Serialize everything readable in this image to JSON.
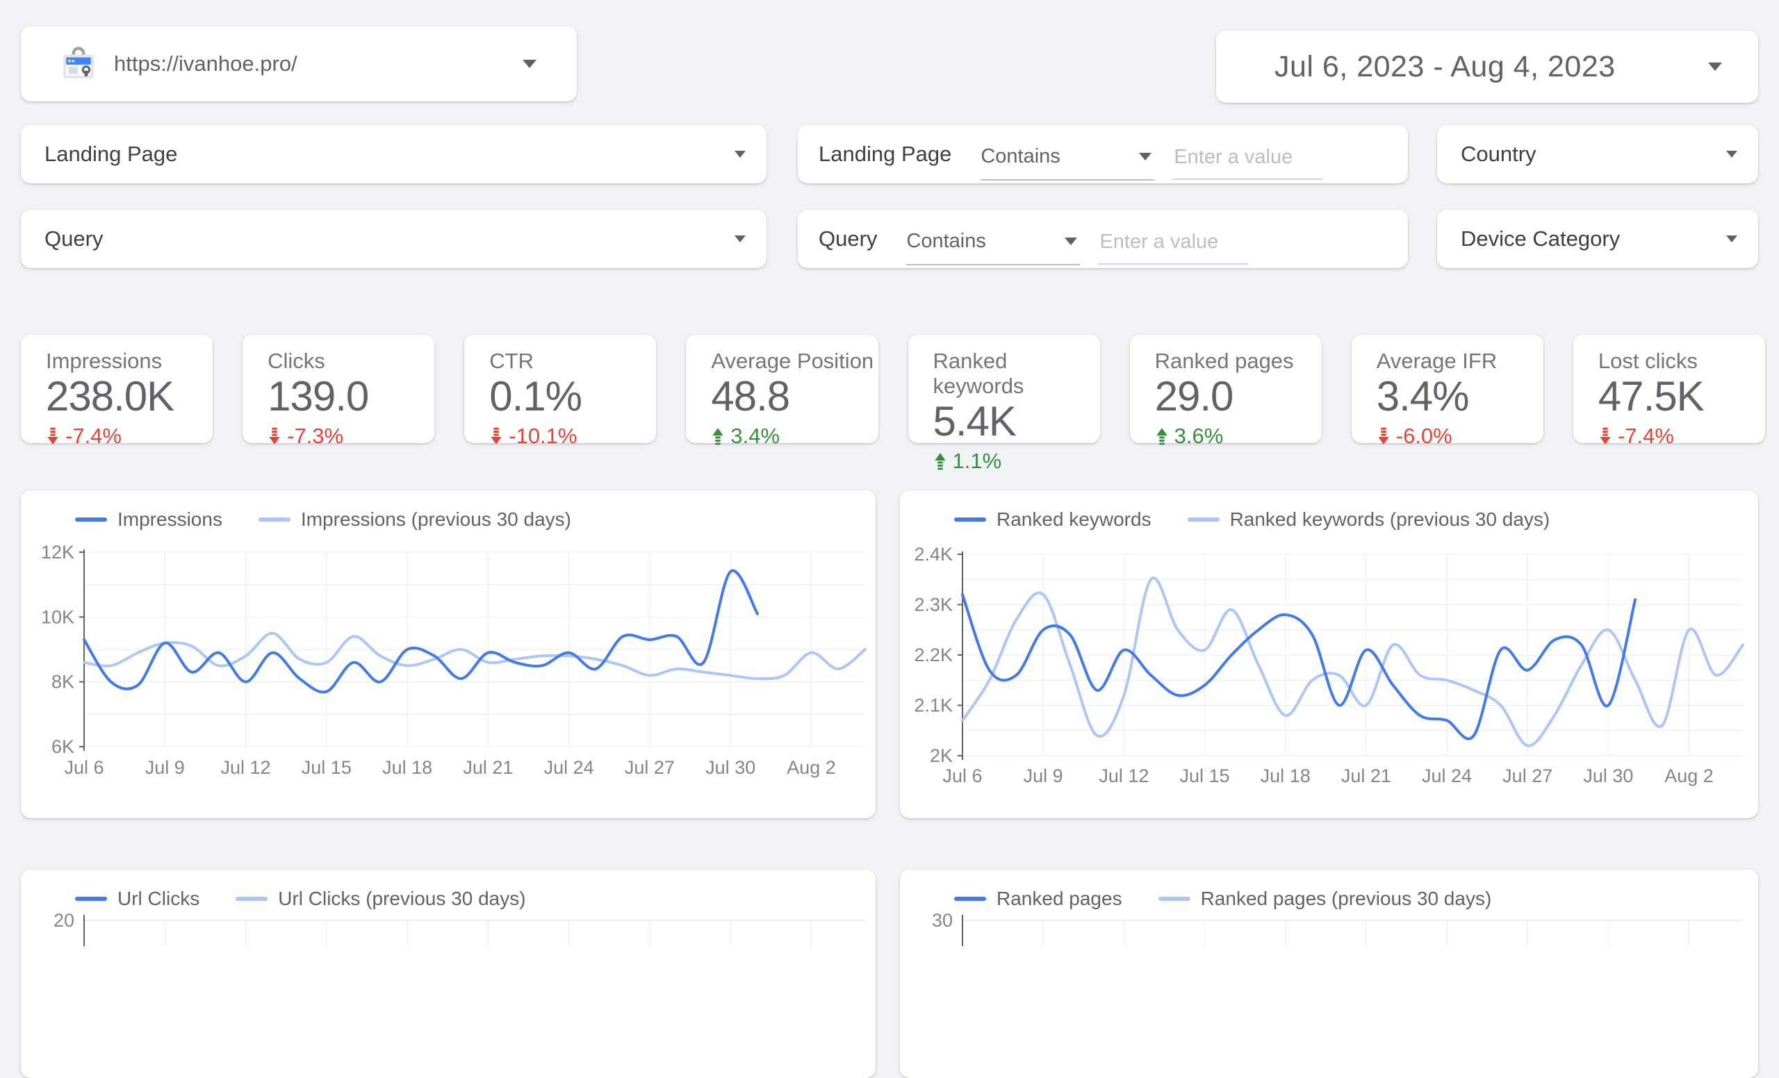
{
  "header": {
    "property_url": "https://ivanhoe.pro/",
    "date_range": "Jul 6, 2023 - Aug 4, 2023"
  },
  "filters": {
    "landing_page": {
      "label": "Landing Page"
    },
    "query": {
      "label": "Query"
    },
    "landing_page_condition": {
      "label": "Landing Page",
      "operator": "Contains",
      "placeholder": "Enter a value"
    },
    "query_condition": {
      "label": "Query",
      "operator": "Contains",
      "placeholder": "Enter a value"
    },
    "country": {
      "label": "Country"
    },
    "device_category": {
      "label": "Device Category"
    }
  },
  "scorecards": [
    {
      "label": "Impressions",
      "value": "238.0K",
      "delta": "-7.4%",
      "direction": "down"
    },
    {
      "label": "Clicks",
      "value": "139.0",
      "delta": "-7.3%",
      "direction": "down"
    },
    {
      "label": "CTR",
      "value": "0.1%",
      "delta": "-10.1%",
      "direction": "down"
    },
    {
      "label": "Average Position",
      "value": "48.8",
      "delta": "3.4%",
      "direction": "up"
    },
    {
      "label": "Ranked keywords",
      "value": "5.4K",
      "delta": "1.1%",
      "direction": "up"
    },
    {
      "label": "Ranked pages",
      "value": "29.0",
      "delta": "3.6%",
      "direction": "up"
    },
    {
      "label": "Average IFR",
      "value": "3.4%",
      "delta": "-6.0%",
      "direction": "down"
    },
    {
      "label": "Lost clicks",
      "value": "47.5K",
      "delta": "-7.4%",
      "direction": "down"
    }
  ],
  "chart_data": [
    {
      "type": "line",
      "title": "Impressions vs previous 30 days",
      "x_days": 30,
      "x_tick_idx": [
        0,
        3,
        6,
        9,
        12,
        15,
        18,
        21,
        24,
        27
      ],
      "x_tick_labels": [
        "Jul 6",
        "Jul 9",
        "Jul 12",
        "Jul 15",
        "Jul 18",
        "Jul 21",
        "Jul 24",
        "Jul 27",
        "Jul 30",
        "Aug 2"
      ],
      "ylim": [
        6000,
        12000
      ],
      "y_minor_step": 1000,
      "yticks": [
        {
          "value": 12000,
          "label": "12K"
        },
        {
          "value": 10000,
          "label": "10K"
        },
        {
          "value": 8000,
          "label": "8K"
        },
        {
          "value": 6000,
          "label": "6K"
        }
      ],
      "grid": true,
      "legend_position": "top",
      "series": [
        {
          "name": "Impressions",
          "values": [
            9300,
            8000,
            7900,
            9200,
            8300,
            8900,
            8000,
            8900,
            8100,
            7700,
            8600,
            8000,
            9000,
            8800,
            8100,
            8900,
            8600,
            8500,
            8900,
            8400,
            9400,
            9300,
            9400,
            8600,
            11400,
            10100
          ]
        },
        {
          "name": "Impressions (previous 30 days)",
          "values": [
            8600,
            8500,
            8900,
            9200,
            9100,
            8500,
            8800,
            9500,
            8700,
            8600,
            9400,
            8800,
            8500,
            8700,
            9000,
            8600,
            8700,
            8800,
            8800,
            8700,
            8500,
            8200,
            8400,
            8300,
            8200,
            8100,
            8200,
            8900,
            8400,
            9000
          ]
        }
      ]
    },
    {
      "type": "line",
      "title": "Ranked keywords vs previous 30 days",
      "x_days": 30,
      "x_tick_idx": [
        0,
        3,
        6,
        9,
        12,
        15,
        18,
        21,
        24,
        27
      ],
      "x_tick_labels": [
        "Jul 6",
        "Jul 9",
        "Jul 12",
        "Jul 15",
        "Jul 18",
        "Jul 21",
        "Jul 24",
        "Jul 27",
        "Jul 30",
        "Aug 2"
      ],
      "ylim": [
        2000,
        2400
      ],
      "y_minor_step": 50,
      "yticks": [
        {
          "value": 2400,
          "label": "2.4K"
        },
        {
          "value": 2300,
          "label": "2.3K"
        },
        {
          "value": 2200,
          "label": "2.2K"
        },
        {
          "value": 2100,
          "label": "2.1K"
        },
        {
          "value": 2000,
          "label": "2K"
        }
      ],
      "grid": true,
      "legend_position": "top",
      "series": [
        {
          "name": "Ranked keywords",
          "values": [
            2320,
            2170,
            2160,
            2250,
            2240,
            2130,
            2210,
            2160,
            2120,
            2140,
            2200,
            2250,
            2280,
            2240,
            2100,
            2210,
            2140,
            2080,
            2070,
            2040,
            2210,
            2170,
            2230,
            2220,
            2100,
            2310
          ]
        },
        {
          "name": "Ranked keywords (previous 30 days)",
          "values": [
            2070,
            2150,
            2270,
            2320,
            2180,
            2040,
            2120,
            2350,
            2250,
            2210,
            2290,
            2180,
            2080,
            2150,
            2160,
            2100,
            2220,
            2160,
            2150,
            2130,
            2100,
            2020,
            2080,
            2180,
            2250,
            2150,
            2060,
            2250,
            2160,
            2220
          ]
        }
      ]
    },
    {
      "type": "line",
      "title": "Url Clicks vs previous 30 days (cut off at bottom of viewport)",
      "partial": true,
      "x_days": 30,
      "x_tick_idx": [
        0,
        3,
        6,
        9,
        12,
        15,
        18,
        21,
        24,
        27
      ],
      "yticks": [
        {
          "value": 20,
          "label": "20"
        }
      ],
      "legend_position": "top",
      "series": [
        {
          "name": "Url Clicks",
          "values": []
        },
        {
          "name": "Url Clicks (previous 30 days)",
          "values": []
        }
      ]
    },
    {
      "type": "line",
      "title": "Ranked pages vs previous 30 days (cut off at bottom of viewport)",
      "partial": true,
      "x_days": 30,
      "x_tick_idx": [
        0,
        3,
        6,
        9,
        12,
        15,
        18,
        21,
        24,
        27
      ],
      "yticks": [
        {
          "value": 30,
          "label": "30"
        }
      ],
      "legend_position": "top",
      "series": [
        {
          "name": "Ranked pages",
          "values": []
        },
        {
          "name": "Ranked pages (previous 30 days)",
          "values": []
        }
      ]
    }
  ],
  "colors": {
    "background": "#f0f2f5",
    "card": "#ffffff",
    "line_current": "#4379e8",
    "line_previous": "#aec6f5",
    "positive_green": "#388e3c",
    "negative_red": "#ea4335",
    "search_console_blue": "#4285f4"
  }
}
